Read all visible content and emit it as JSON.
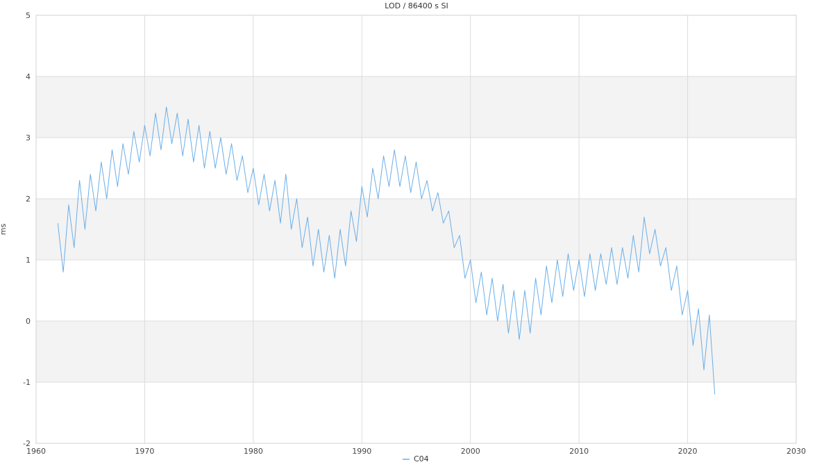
{
  "chart_data": {
    "type": "line",
    "title": "LOD / 86400 s SI",
    "xlabel": "",
    "ylabel": "ms",
    "xlim": [
      1960,
      2030
    ],
    "ylim": [
      -2,
      5
    ],
    "x_ticks": [
      1960,
      1970,
      1980,
      1990,
      2000,
      2010,
      2020,
      2030
    ],
    "y_ticks": [
      -2,
      -1,
      0,
      1,
      2,
      3,
      4,
      5
    ],
    "grid": true,
    "alternating_bands": true,
    "legend": {
      "position": "bottom-center",
      "entries": [
        "C04"
      ]
    },
    "series": [
      {
        "name": "C04",
        "color": "#6aaee8",
        "x": [
          1962.0,
          1962.5,
          1963.0,
          1963.5,
          1964.0,
          1964.5,
          1965.0,
          1965.5,
          1966.0,
          1966.5,
          1967.0,
          1967.5,
          1968.0,
          1968.5,
          1969.0,
          1969.5,
          1970.0,
          1970.5,
          1971.0,
          1971.5,
          1972.0,
          1972.5,
          1973.0,
          1973.5,
          1974.0,
          1974.5,
          1975.0,
          1975.5,
          1976.0,
          1976.5,
          1977.0,
          1977.5,
          1978.0,
          1978.5,
          1979.0,
          1979.5,
          1980.0,
          1980.5,
          1981.0,
          1981.5,
          1982.0,
          1982.5,
          1983.0,
          1983.5,
          1984.0,
          1984.5,
          1985.0,
          1985.5,
          1986.0,
          1986.5,
          1987.0,
          1987.5,
          1988.0,
          1988.5,
          1989.0,
          1989.5,
          1990.0,
          1990.5,
          1991.0,
          1991.5,
          1992.0,
          1992.5,
          1993.0,
          1993.5,
          1994.0,
          1994.5,
          1995.0,
          1995.5,
          1996.0,
          1996.5,
          1997.0,
          1997.5,
          1998.0,
          1998.5,
          1999.0,
          1999.5,
          2000.0,
          2000.5,
          2001.0,
          2001.5,
          2002.0,
          2002.5,
          2003.0,
          2003.5,
          2004.0,
          2004.5,
          2005.0,
          2005.5,
          2006.0,
          2006.5,
          2007.0,
          2007.5,
          2008.0,
          2008.5,
          2009.0,
          2009.5,
          2010.0,
          2010.5,
          2011.0,
          2011.5,
          2012.0,
          2012.5,
          2013.0,
          2013.5,
          2014.0,
          2014.5,
          2015.0,
          2015.5,
          2016.0,
          2016.5,
          2017.0,
          2017.5,
          2018.0,
          2018.5,
          2019.0,
          2019.5,
          2020.0,
          2020.5,
          2021.0,
          2021.5,
          2022.0,
          2022.5
        ],
        "y": [
          1.6,
          0.8,
          1.9,
          1.2,
          2.3,
          1.5,
          2.4,
          1.8,
          2.6,
          2.0,
          2.8,
          2.2,
          2.9,
          2.4,
          3.1,
          2.6,
          3.2,
          2.7,
          3.4,
          2.8,
          3.5,
          2.9,
          3.4,
          2.7,
          3.3,
          2.6,
          3.2,
          2.5,
          3.1,
          2.5,
          3.0,
          2.4,
          2.9,
          2.3,
          2.7,
          2.1,
          2.5,
          1.9,
          2.4,
          1.8,
          2.3,
          1.6,
          2.4,
          1.5,
          2.0,
          1.2,
          1.7,
          0.9,
          1.5,
          0.8,
          1.4,
          0.7,
          1.5,
          0.9,
          1.8,
          1.3,
          2.2,
          1.7,
          2.5,
          2.0,
          2.7,
          2.2,
          2.8,
          2.2,
          2.7,
          2.1,
          2.6,
          2.0,
          2.3,
          1.8,
          2.1,
          1.6,
          1.8,
          1.2,
          1.4,
          0.7,
          1.0,
          0.3,
          0.8,
          0.1,
          0.7,
          0.0,
          0.6,
          -0.2,
          0.5,
          -0.3,
          0.5,
          -0.2,
          0.7,
          0.1,
          0.9,
          0.3,
          1.0,
          0.4,
          1.1,
          0.5,
          1.0,
          0.4,
          1.1,
          0.5,
          1.1,
          0.6,
          1.2,
          0.6,
          1.2,
          0.7,
          1.4,
          0.8,
          1.7,
          1.1,
          1.5,
          0.9,
          1.2,
          0.5,
          0.9,
          0.1,
          0.5,
          -0.4,
          0.2,
          -0.8,
          0.1,
          -1.2
        ]
      }
    ]
  }
}
